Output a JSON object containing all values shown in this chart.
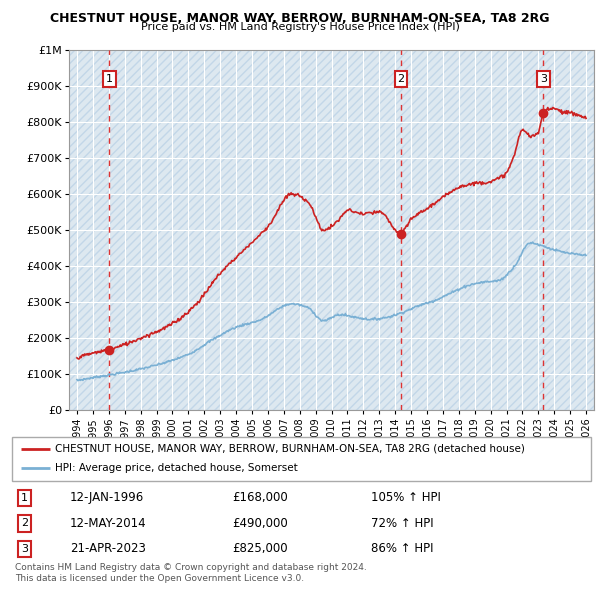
{
  "title": "CHESTNUT HOUSE, MANOR WAY, BERROW, BURNHAM-ON-SEA, TA8 2RG",
  "subtitle": "Price paid vs. HM Land Registry's House Price Index (HPI)",
  "hpi_color": "#7ab0d4",
  "price_color": "#cc2222",
  "background_color": "#dde8f0",
  "grid_color": "#ffffff",
  "vline_color": "#dd3333",
  "transactions": [
    {
      "label": "1",
      "date_num": 1996.04,
      "price": 168000
    },
    {
      "label": "2",
      "date_num": 2014.37,
      "price": 490000
    },
    {
      "label": "3",
      "date_num": 2023.31,
      "price": 825000
    }
  ],
  "transaction_info": [
    {
      "num": "1",
      "date": "12-JAN-1996",
      "price": "£168,000",
      "hpi": "105% ↑ HPI"
    },
    {
      "num": "2",
      "date": "12-MAY-2014",
      "price": "£490,000",
      "hpi": "72% ↑ HPI"
    },
    {
      "num": "3",
      "date": "21-APR-2023",
      "price": "£825,000",
      "hpi": "86% ↑ HPI"
    }
  ],
  "legend_line1": "CHESTNUT HOUSE, MANOR WAY, BERROW, BURNHAM-ON-SEA, TA8 2RG (detached house)",
  "legend_line2": "HPI: Average price, detached house, Somerset",
  "footer": "Contains HM Land Registry data © Crown copyright and database right 2024.\nThis data is licensed under the Open Government Licence v3.0.",
  "xmin": 1993.5,
  "xmax": 2026.5,
  "ymin": 0,
  "ymax": 1000000,
  "yticks": [
    0,
    100000,
    200000,
    300000,
    400000,
    500000,
    600000,
    700000,
    800000,
    900000,
    1000000
  ]
}
